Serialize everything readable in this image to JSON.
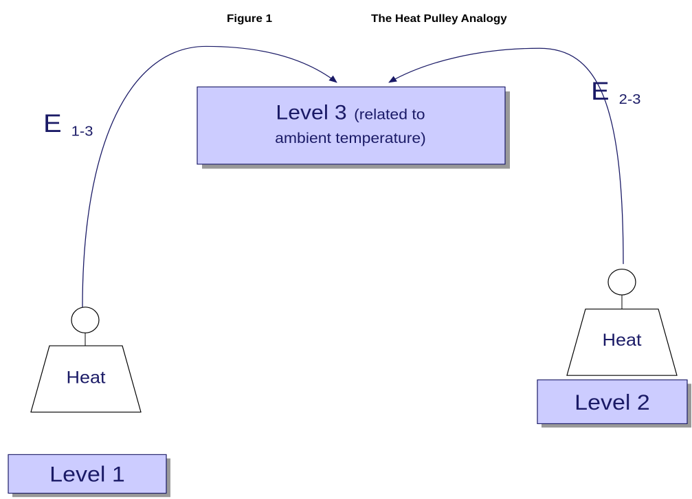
{
  "header": {
    "figure": "Figure 1",
    "title": "The Heat Pulley Analogy"
  },
  "level3": {
    "label": "Level 3",
    "detail_lines": [
      "(related to",
      "ambient temperature)"
    ]
  },
  "edges": [
    {
      "symbol": "E",
      "subscript": "1-3"
    },
    {
      "symbol": "E",
      "subscript": "2-3"
    }
  ],
  "weights": [
    {
      "label": "Heat"
    },
    {
      "label": "Heat"
    }
  ],
  "levels": [
    {
      "label": "Level 1"
    },
    {
      "label": "Level 2"
    }
  ]
}
